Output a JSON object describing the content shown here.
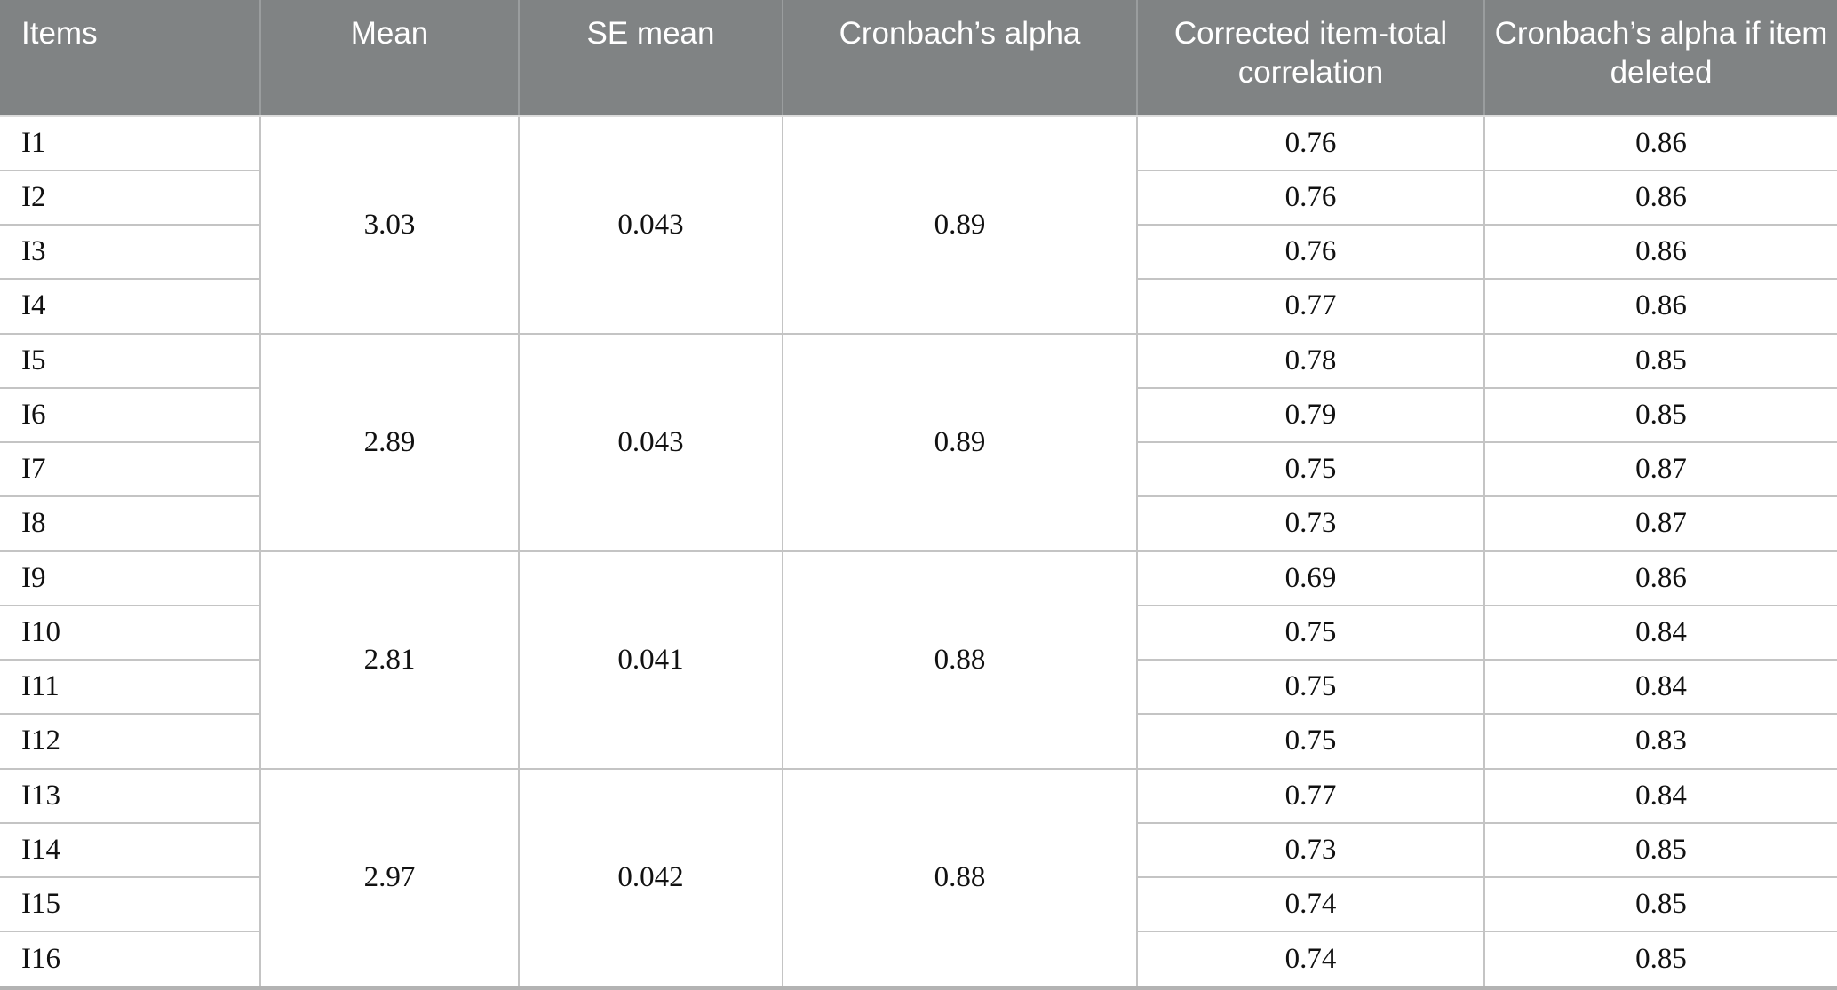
{
  "table": {
    "columns": [
      "Items",
      "Mean",
      "SE mean",
      "Cronbach’s alpha",
      "Corrected item-total correlation",
      "Cronbach’s alpha if item deleted"
    ],
    "header_bg": "#808384",
    "header_text_color": "#ffffff",
    "grid_color": "#c4c4c4",
    "bottom_rule_color": "#b3b3b3",
    "groups": [
      {
        "mean": "3.03",
        "se": "0.043",
        "alpha": "0.89"
      },
      {
        "mean": "2.89",
        "se": "0.043",
        "alpha": "0.89"
      },
      {
        "mean": "2.81",
        "se": "0.041",
        "alpha": "0.88"
      },
      {
        "mean": "2.97",
        "se": "0.042",
        "alpha": "0.88"
      }
    ],
    "rows": [
      {
        "label": "I1",
        "citc": "0.76",
        "aid": "0.86"
      },
      {
        "label": "I2",
        "citc": "0.76",
        "aid": "0.86"
      },
      {
        "label": "I3",
        "citc": "0.76",
        "aid": "0.86"
      },
      {
        "label": "I4",
        "citc": "0.77",
        "aid": "0.86"
      },
      {
        "label": "I5",
        "citc": "0.78",
        "aid": "0.85"
      },
      {
        "label": "I6",
        "citc": "0.79",
        "aid": "0.85"
      },
      {
        "label": "I7",
        "citc": "0.75",
        "aid": "0.87"
      },
      {
        "label": "I8",
        "citc": "0.73",
        "aid": "0.87"
      },
      {
        "label": "I9",
        "citc": "0.69",
        "aid": "0.86"
      },
      {
        "label": "I10",
        "citc": "0.75",
        "aid": "0.84"
      },
      {
        "label": "I11",
        "citc": "0.75",
        "aid": "0.84"
      },
      {
        "label": "I12",
        "citc": "0.75",
        "aid": "0.83"
      },
      {
        "label": "I13",
        "citc": "0.77",
        "aid": "0.84"
      },
      {
        "label": "I14",
        "citc": "0.73",
        "aid": "0.85"
      },
      {
        "label": "I15",
        "citc": "0.74",
        "aid": "0.85"
      },
      {
        "label": "I16",
        "citc": "0.74",
        "aid": "0.85"
      }
    ]
  }
}
